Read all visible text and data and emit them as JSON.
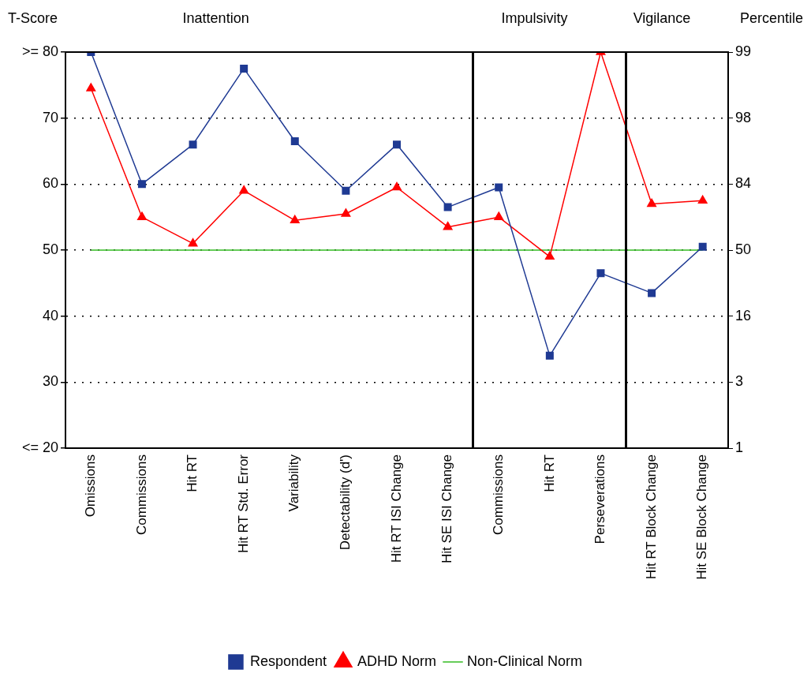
{
  "chart_data": {
    "type": "line",
    "ylabel": "T-Score",
    "y2label": "Percentile",
    "annotations": [
      "Inattention",
      "Impulsivity",
      "Vigilance"
    ],
    "categories": [
      "Omissions",
      "Commissions",
      "Hit RT",
      "Hit RT Std. Error",
      "Variability",
      "Detectability (d')",
      "Hit RT ISI Change",
      "Hit SE ISI Change",
      "Commissions",
      "Hit RT",
      "Perseverations",
      "Hit RT Block Change",
      "Hit SE Block Change"
    ],
    "series": [
      {
        "name": "Respondent",
        "color": "#1f3a93",
        "marker": "square",
        "values": [
          80,
          60,
          66,
          77.5,
          66.5,
          59,
          66,
          56.5,
          59.5,
          34,
          46.5,
          43.5,
          50.5
        ]
      },
      {
        "name": "ADHD Norm",
        "color": "#ff0000",
        "marker": "triangle",
        "values": [
          74.5,
          55,
          51,
          59,
          54.5,
          55.5,
          59.5,
          53.5,
          55,
          49,
          80,
          57,
          57.5
        ]
      },
      {
        "name": "Non-Clinical Norm",
        "color": "#33bb22",
        "marker": "none",
        "values": [
          50,
          50,
          50,
          50,
          50,
          50,
          50,
          50,
          50,
          50,
          50,
          50,
          50
        ]
      }
    ],
    "ylim": [
      20,
      80
    ],
    "yticks": [
      {
        "value": 20,
        "label": "<= 20"
      },
      30,
      40,
      50,
      60,
      70,
      {
        "value": 80,
        "label": ">= 80"
      }
    ],
    "y2_categories": [
      "99",
      "98",
      "84",
      "50",
      "16",
      "3",
      "1"
    ],
    "grid": "y",
    "legend": "bottom",
    "line_style": "solid"
  }
}
